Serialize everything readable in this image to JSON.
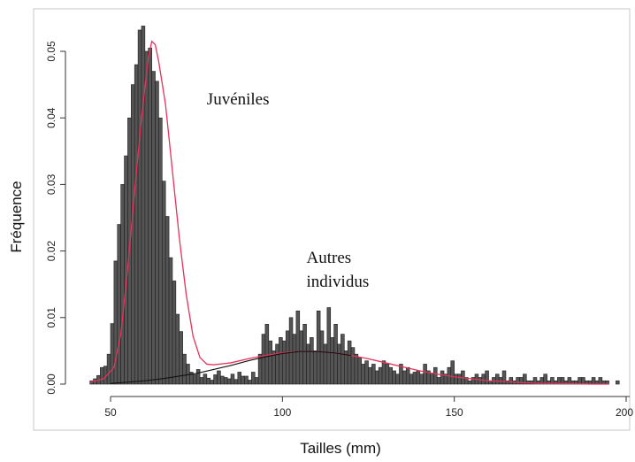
{
  "chart_data": {
    "type": "bar",
    "title": "",
    "xlabel": "Tailles (mm)",
    "ylabel": "Fréquence",
    "xlim": [
      41,
      200
    ],
    "ylim": [
      -0.0012,
      0.0545
    ],
    "xticks": [
      {
        "value": 50,
        "label": "50"
      },
      {
        "value": 100,
        "label": "100"
      },
      {
        "value": 150,
        "label": "150"
      },
      {
        "value": 200,
        "label": "200"
      }
    ],
    "yticks": [
      {
        "value": 0.0,
        "label": "0.00"
      },
      {
        "value": 0.01,
        "label": "0.01"
      },
      {
        "value": 0.02,
        "label": "0.02"
      },
      {
        "value": 0.03,
        "label": "0.03"
      },
      {
        "value": 0.04,
        "label": "0.04"
      },
      {
        "value": 0.05,
        "label": "0.05"
      }
    ],
    "bin_width": 1,
    "bins_start": 44,
    "values": [
      0.0005,
      0.0008,
      0.0013,
      0.0025,
      0.0027,
      0.0045,
      0.0091,
      0.0185,
      0.024,
      0.03,
      0.0343,
      0.04,
      0.045,
      0.048,
      0.0532,
      0.0538,
      0.05,
      0.0505,
      0.047,
      0.0455,
      0.04,
      0.0305,
      0.0252,
      0.019,
      0.0155,
      0.0105,
      0.0079,
      0.0045,
      0.003,
      0.0018,
      0.0014,
      0.0022,
      0.001,
      0.0015,
      0.0009,
      0.0006,
      0.0014,
      0.002,
      0.0012,
      0.001,
      0.0008,
      0.0015,
      0.0007,
      0.0018,
      0.0012,
      0.0012,
      0.0006,
      0.0018,
      0.001,
      0.0045,
      0.0075,
      0.009,
      0.0065,
      0.005,
      0.006,
      0.007,
      0.0065,
      0.008,
      0.01,
      0.0075,
      0.011,
      0.008,
      0.009,
      0.006,
      0.007,
      0.005,
      0.011,
      0.008,
      0.006,
      0.0115,
      0.007,
      0.009,
      0.006,
      0.0075,
      0.005,
      0.0065,
      0.0055,
      0.0045,
      0.004,
      0.003,
      0.0035,
      0.0025,
      0.003,
      0.002,
      0.0025,
      0.0035,
      0.003,
      0.0025,
      0.002,
      0.0015,
      0.003,
      0.002,
      0.0025,
      0.0015,
      0.0018,
      0.002,
      0.0015,
      0.003,
      0.002,
      0.0015,
      0.0025,
      0.001,
      0.002,
      0.0015,
      0.0025,
      0.0035,
      0.0015,
      0.0015,
      0.002,
      0.001,
      0.0005,
      0.001,
      0.0015,
      0.001,
      0.0015,
      0.002,
      0.0005,
      0.001,
      0.0015,
      0.001,
      0.002,
      0.0005,
      0.001,
      0.0005,
      0.001,
      0.001,
      0.0015,
      0.0005,
      0.0005,
      0.001,
      0.0005,
      0.001,
      0.0015,
      0.0005,
      0.001,
      0.0005,
      0.001,
      0.001,
      0.0005,
      0.001,
      0.0005,
      0.0005,
      0.001,
      0.001,
      0.0005,
      0.0005,
      0.001,
      0.0005,
      0.001,
      0.0005,
      0.0005,
      0.0,
      0.0,
      0.0005,
      0.0,
      0.0,
      0.0,
      0.0,
      0.0,
      0.001
    ],
    "density_curve": {
      "color": "#e8305a",
      "points": [
        [
          44,
          0.0003
        ],
        [
          48,
          0.0008
        ],
        [
          51,
          0.0025
        ],
        [
          53,
          0.0075
        ],
        [
          55,
          0.0175
        ],
        [
          57,
          0.029
        ],
        [
          59,
          0.04
        ],
        [
          61,
          0.049
        ],
        [
          62,
          0.0515
        ],
        [
          63,
          0.051
        ],
        [
          64,
          0.0485
        ],
        [
          66,
          0.042
        ],
        [
          68,
          0.032
        ],
        [
          70,
          0.022
        ],
        [
          72,
          0.0135
        ],
        [
          74,
          0.0072
        ],
        [
          76,
          0.004
        ],
        [
          78,
          0.003
        ],
        [
          80,
          0.0029
        ],
        [
          85,
          0.0032
        ],
        [
          90,
          0.0038
        ],
        [
          95,
          0.0043
        ],
        [
          100,
          0.0047
        ],
        [
          105,
          0.0049
        ],
        [
          110,
          0.0049
        ],
        [
          115,
          0.0047
        ],
        [
          120,
          0.0043
        ],
        [
          125,
          0.0038
        ],
        [
          130,
          0.0032
        ],
        [
          135,
          0.0026
        ],
        [
          140,
          0.002
        ],
        [
          145,
          0.0015
        ],
        [
          150,
          0.0011
        ],
        [
          155,
          0.0008
        ],
        [
          160,
          0.0005
        ],
        [
          165,
          0.0004
        ],
        [
          170,
          0.0002
        ],
        [
          175,
          0.0001
        ],
        [
          180,
          0.0001
        ],
        [
          190,
          0.0
        ],
        [
          195,
          0.0
        ]
      ]
    },
    "component_curve": {
      "color": "#111111",
      "points": [
        [
          50,
          0.0001
        ],
        [
          55,
          0.0003
        ],
        [
          60,
          0.0005
        ],
        [
          65,
          0.0008
        ],
        [
          70,
          0.0012
        ],
        [
          75,
          0.0016
        ],
        [
          80,
          0.0022
        ],
        [
          85,
          0.0028
        ],
        [
          90,
          0.0035
        ],
        [
          95,
          0.0041
        ],
        [
          100,
          0.0046
        ],
        [
          105,
          0.0049
        ],
        [
          110,
          0.0049
        ],
        [
          115,
          0.0047
        ],
        [
          120,
          0.0043
        ]
      ]
    },
    "annotations": [
      {
        "text": "Juvéniles",
        "x": 78,
        "y": 0.042
      },
      {
        "text": "Autres",
        "x": 107,
        "y": 0.0182
      },
      {
        "text": "individus",
        "x": 107,
        "y": 0.0146
      }
    ]
  }
}
